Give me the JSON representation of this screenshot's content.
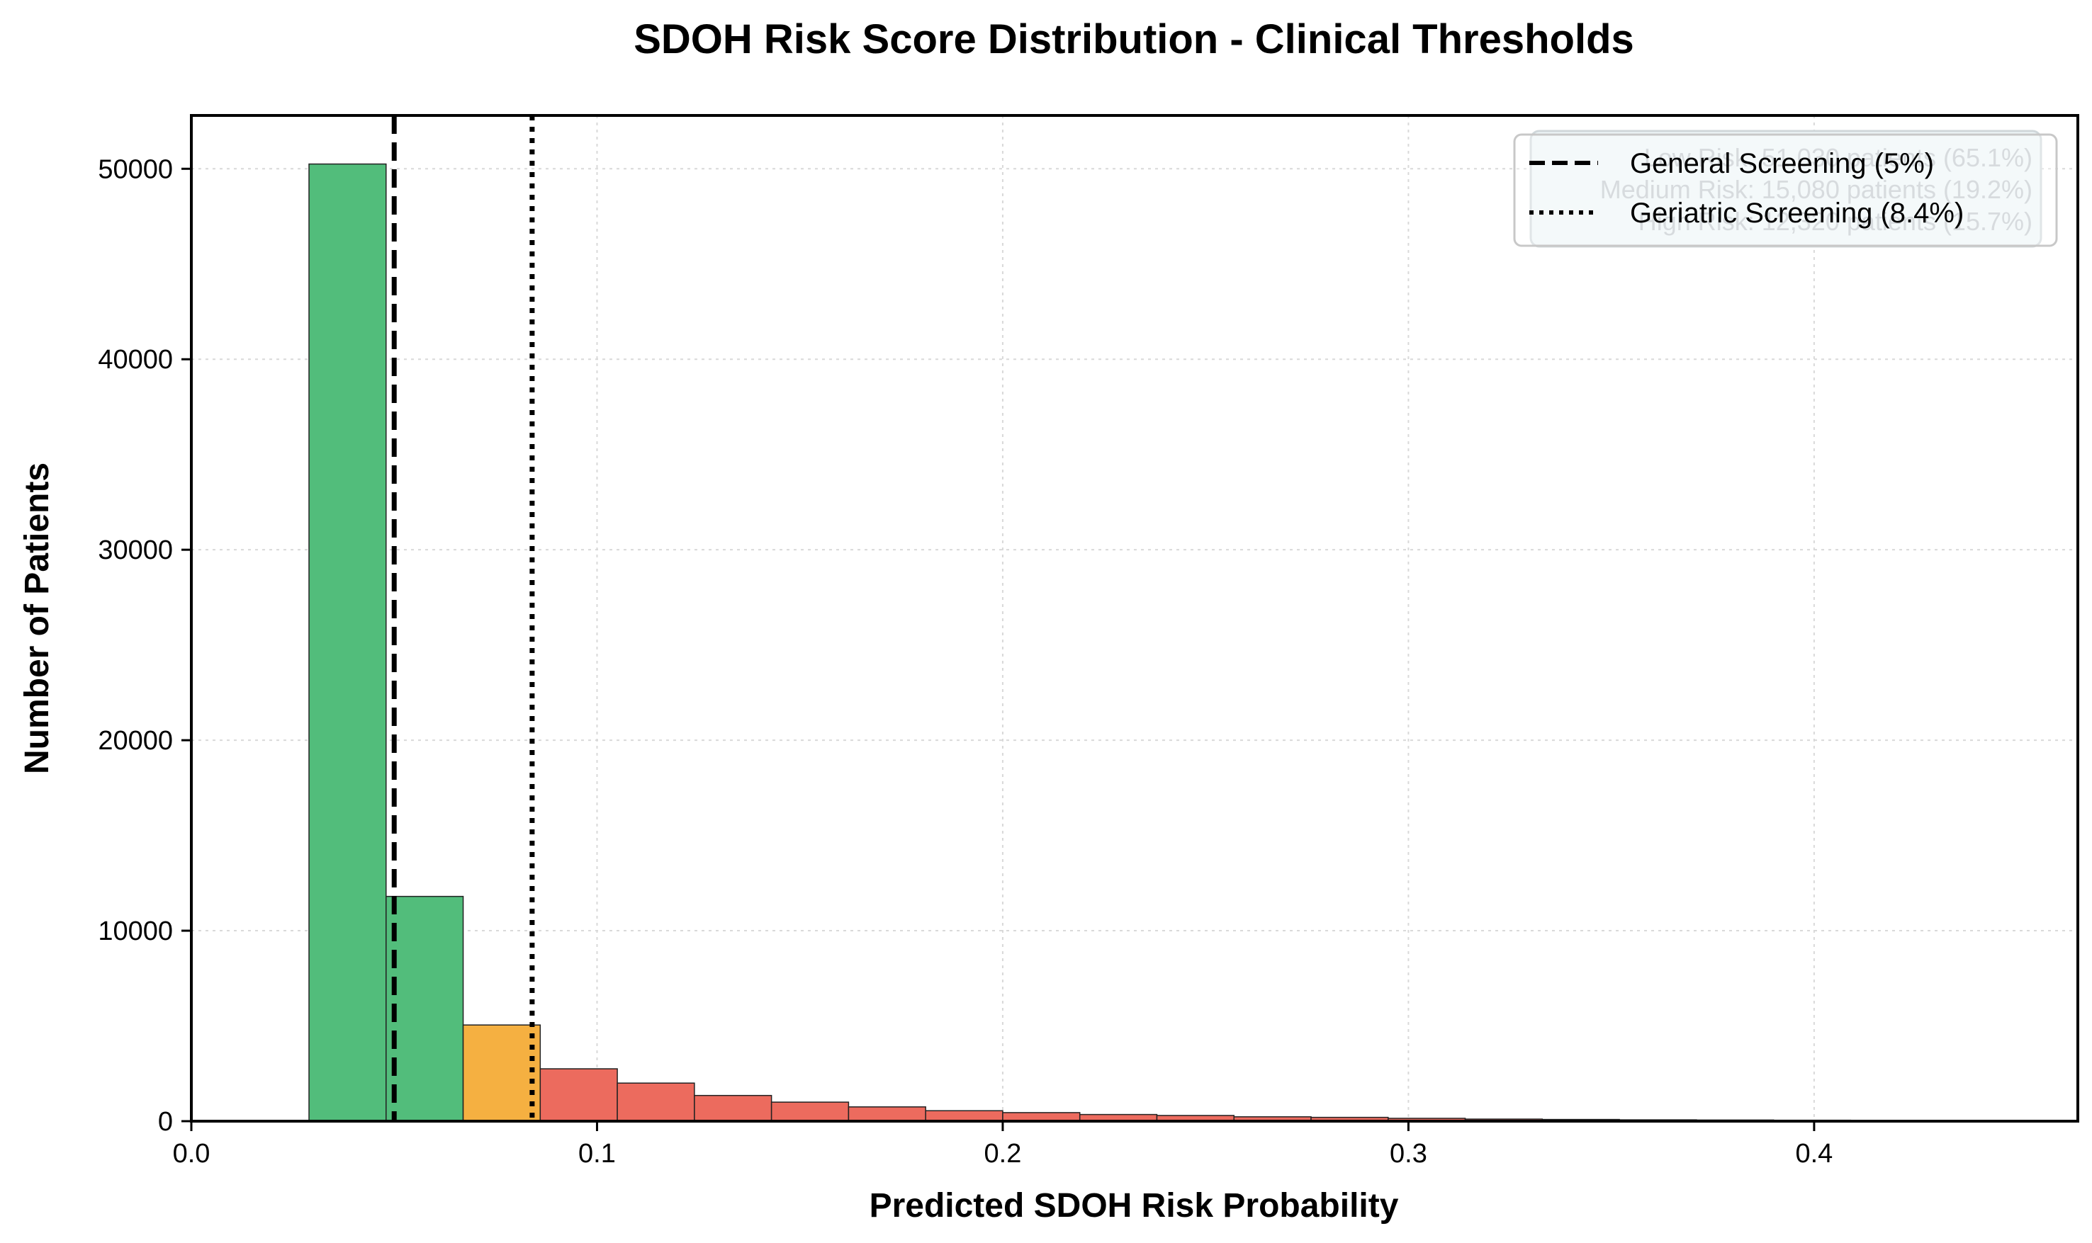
{
  "chart_data": {
    "type": "bar",
    "title": "SDOH Risk Score Distribution - Clinical Thresholds",
    "xlabel": "Predicted SDOH Risk Probability",
    "ylabel": "Number of Patients",
    "xlim": [
      0.0,
      0.465
    ],
    "ylim": [
      0,
      52800
    ],
    "x_ticks": [
      0.0,
      0.1,
      0.2,
      0.3,
      0.4
    ],
    "x_tick_labels": [
      "0.0",
      "0.1",
      "0.2",
      "0.3",
      "0.4"
    ],
    "y_ticks": [
      0,
      10000,
      20000,
      30000,
      40000,
      50000
    ],
    "y_tick_labels": [
      "0",
      "10000",
      "20000",
      "30000",
      "40000",
      "50000"
    ],
    "grid": true,
    "legend_position": "top-right",
    "colors": {
      "low": "#52bd7b",
      "medium": "#f5b041",
      "high": "#ec6b5e",
      "edge": "#222222"
    },
    "bins": [
      {
        "start": 0.029,
        "end": 0.048,
        "count": 50250,
        "tier": "low"
      },
      {
        "start": 0.048,
        "end": 0.067,
        "count": 11800,
        "tier": "low"
      },
      {
        "start": 0.067,
        "end": 0.086,
        "count": 5050,
        "tier": "medium"
      },
      {
        "start": 0.086,
        "end": 0.105,
        "count": 2750,
        "tier": "high"
      },
      {
        "start": 0.105,
        "end": 0.124,
        "count": 2000,
        "tier": "high"
      },
      {
        "start": 0.124,
        "end": 0.143,
        "count": 1350,
        "tier": "high"
      },
      {
        "start": 0.143,
        "end": 0.162,
        "count": 1000,
        "tier": "high"
      },
      {
        "start": 0.162,
        "end": 0.181,
        "count": 750,
        "tier": "high"
      },
      {
        "start": 0.181,
        "end": 0.2,
        "count": 550,
        "tier": "high"
      },
      {
        "start": 0.2,
        "end": 0.219,
        "count": 450,
        "tier": "high"
      },
      {
        "start": 0.219,
        "end": 0.238,
        "count": 350,
        "tier": "high"
      },
      {
        "start": 0.238,
        "end": 0.257,
        "count": 300,
        "tier": "high"
      },
      {
        "start": 0.257,
        "end": 0.276,
        "count": 230,
        "tier": "high"
      },
      {
        "start": 0.276,
        "end": 0.295,
        "count": 200,
        "tier": "high"
      },
      {
        "start": 0.295,
        "end": 0.314,
        "count": 150,
        "tier": "high"
      },
      {
        "start": 0.314,
        "end": 0.333,
        "count": 110,
        "tier": "high"
      },
      {
        "start": 0.333,
        "end": 0.352,
        "count": 90,
        "tier": "high"
      },
      {
        "start": 0.352,
        "end": 0.371,
        "count": 70,
        "tier": "high"
      },
      {
        "start": 0.371,
        "end": 0.39,
        "count": 60,
        "tier": "high"
      },
      {
        "start": 0.39,
        "end": 0.409,
        "count": 50,
        "tier": "high"
      },
      {
        "start": 0.409,
        "end": 0.428,
        "count": 40,
        "tier": "high"
      }
    ],
    "thresholds": [
      {
        "value": 0.05,
        "label": "General Screening (5%)",
        "style": "dashed"
      },
      {
        "value": 0.084,
        "label": "Geriatric Screening (8.4%)",
        "style": "dotted"
      }
    ],
    "annotation": {
      "lines": [
        "Low Risk: 51,030 patients (65.1%)",
        "Medium Risk: 15,080 patients (19.2%)",
        "High Risk: 12,320 patients (15.7%)"
      ]
    }
  }
}
